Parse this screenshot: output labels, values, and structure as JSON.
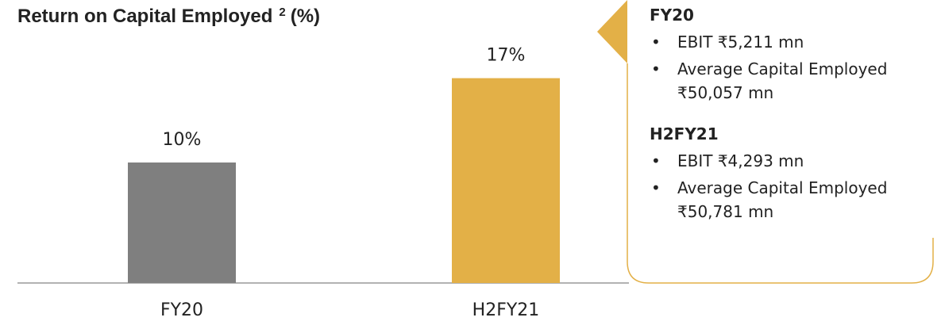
{
  "chart_data": {
    "type": "bar",
    "title": "Return on Capital Employed",
    "title_footnote": "2",
    "title_unit": "(%)",
    "categories": [
      "FY20",
      "H2FY21"
    ],
    "values": [
      10,
      17
    ],
    "value_labels": [
      "10%",
      "17%"
    ],
    "colors": [
      "#7f7f7f",
      "#e3b047"
    ]
  },
  "callout": {
    "sections": [
      {
        "heading": "FY20",
        "bullets": [
          "EBIT ₹5,211 mn",
          "Average Capital Employed ₹50,057 mn"
        ]
      },
      {
        "heading": "H2FY21",
        "bullets": [
          "EBIT ₹4,293 mn",
          "Average Capital Employed ₹50,781 mn"
        ]
      }
    ]
  }
}
